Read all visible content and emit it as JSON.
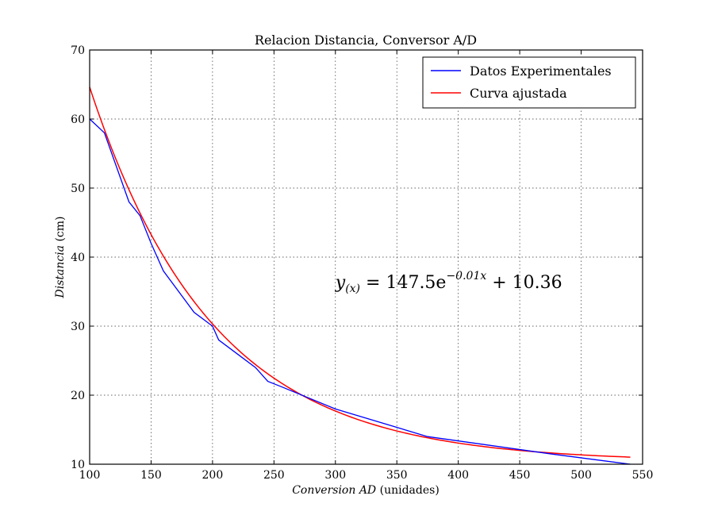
{
  "chart_data": {
    "type": "line",
    "title": "Relacion Distancia, Conversor A/D",
    "xlabel_italic": "Conversion AD",
    "xlabel_unit": " (unidades)",
    "ylabel_italic": "Distancia",
    "ylabel_unit": " (cm)",
    "xlim": [
      100,
      550
    ],
    "ylim": [
      10,
      70
    ],
    "xticks": [
      100,
      150,
      200,
      250,
      300,
      350,
      400,
      450,
      500,
      550
    ],
    "yticks": [
      10,
      20,
      30,
      40,
      50,
      60,
      70
    ],
    "grid": true,
    "legend_position": "top-right",
    "annotation": {
      "lhs": "y",
      "lhs_sub": "(x)",
      "eq": " = 147.5e",
      "exponent": "−0.01x",
      "tail": " + 10.36",
      "x": 300,
      "y": 35.5
    },
    "series": [
      {
        "name": "Datos Experimentales",
        "color": "#0000ff",
        "x": [
          100,
          112,
          132,
          141,
          150,
          160,
          185,
          200,
          205,
          220,
          235,
          245,
          255,
          300,
          375,
          475,
          540
        ],
        "y": [
          60,
          58,
          48,
          46,
          42,
          38,
          32,
          30,
          28,
          26,
          24,
          22,
          21.3,
          18,
          14,
          11.5,
          10
        ]
      },
      {
        "name": "Curva ajustada",
        "color": "#ff0000",
        "fit": {
          "a": 147.5,
          "b": 0.01,
          "c": 10.36,
          "x_from": 100,
          "x_to": 540
        }
      }
    ]
  }
}
